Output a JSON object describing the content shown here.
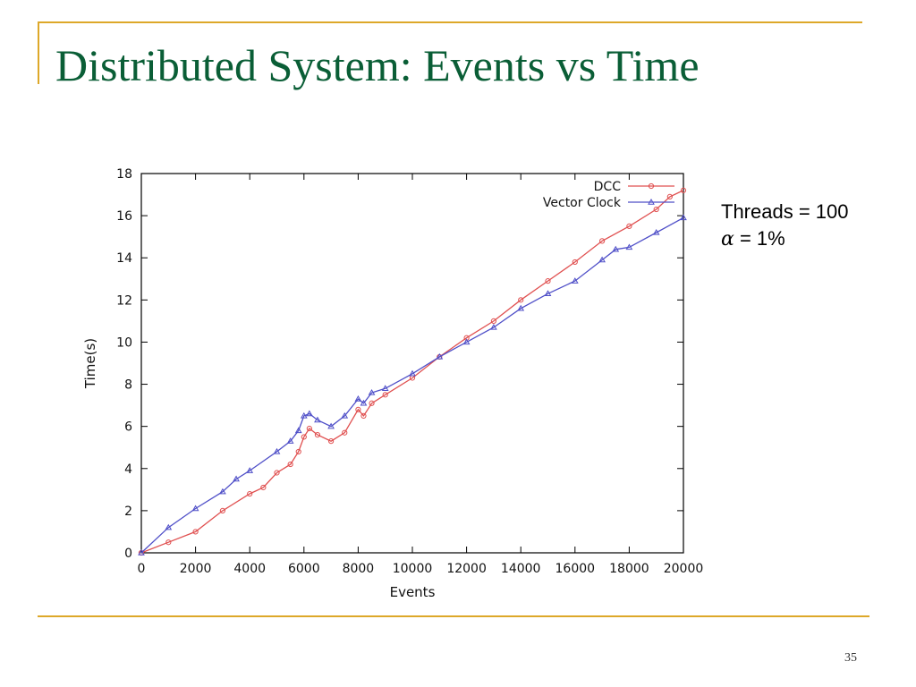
{
  "slide": {
    "title": "Distributed System: Events vs Time",
    "note_threads": "Threads = 100",
    "note_alpha_symbol": "α",
    "note_alpha_value": " = 1%",
    "page_number": "35",
    "accent_color": "#dda829",
    "title_color": "#0a5e36"
  },
  "chart_data": {
    "type": "line",
    "title": "",
    "xlabel": "Events",
    "ylabel": "Time(s)",
    "xlim": [
      0,
      20000
    ],
    "ylim": [
      0,
      18
    ],
    "xticks": [
      0,
      2000,
      4000,
      6000,
      8000,
      10000,
      12000,
      14000,
      16000,
      18000,
      20000
    ],
    "yticks": [
      0,
      2,
      4,
      6,
      8,
      10,
      12,
      14,
      16,
      18
    ],
    "grid": false,
    "legend_position": "top-right",
    "series": [
      {
        "name": "DCC",
        "color": "#e05050",
        "marker": "circle",
        "x": [
          0,
          1000,
          2000,
          3000,
          4000,
          4500,
          5000,
          5500,
          5800,
          6000,
          6200,
          6500,
          7000,
          7500,
          8000,
          8200,
          8500,
          9000,
          10000,
          11000,
          12000,
          13000,
          14000,
          15000,
          16000,
          17000,
          18000,
          19000,
          19500,
          20000
        ],
        "y": [
          0,
          0.5,
          1.0,
          2.0,
          2.8,
          3.1,
          3.8,
          4.2,
          4.8,
          5.5,
          5.9,
          5.6,
          5.3,
          5.7,
          6.8,
          6.5,
          7.1,
          7.5,
          8.3,
          9.3,
          10.2,
          11.0,
          12.0,
          12.9,
          13.8,
          14.8,
          15.5,
          16.3,
          16.9,
          17.2
        ]
      },
      {
        "name": "Vector Clock",
        "color": "#4f4fc8",
        "marker": "triangle",
        "x": [
          0,
          1000,
          2000,
          3000,
          3500,
          4000,
          5000,
          5500,
          5800,
          6000,
          6200,
          6500,
          7000,
          7500,
          8000,
          8200,
          8500,
          9000,
          10000,
          11000,
          12000,
          13000,
          14000,
          15000,
          16000,
          17000,
          17500,
          18000,
          19000,
          20000
        ],
        "y": [
          0,
          1.2,
          2.1,
          2.9,
          3.5,
          3.9,
          4.8,
          5.3,
          5.8,
          6.5,
          6.6,
          6.3,
          6.0,
          6.5,
          7.3,
          7.1,
          7.6,
          7.8,
          8.5,
          9.3,
          10.0,
          10.7,
          11.6,
          12.3,
          12.9,
          13.9,
          14.4,
          14.5,
          15.2,
          15.9
        ]
      }
    ]
  }
}
